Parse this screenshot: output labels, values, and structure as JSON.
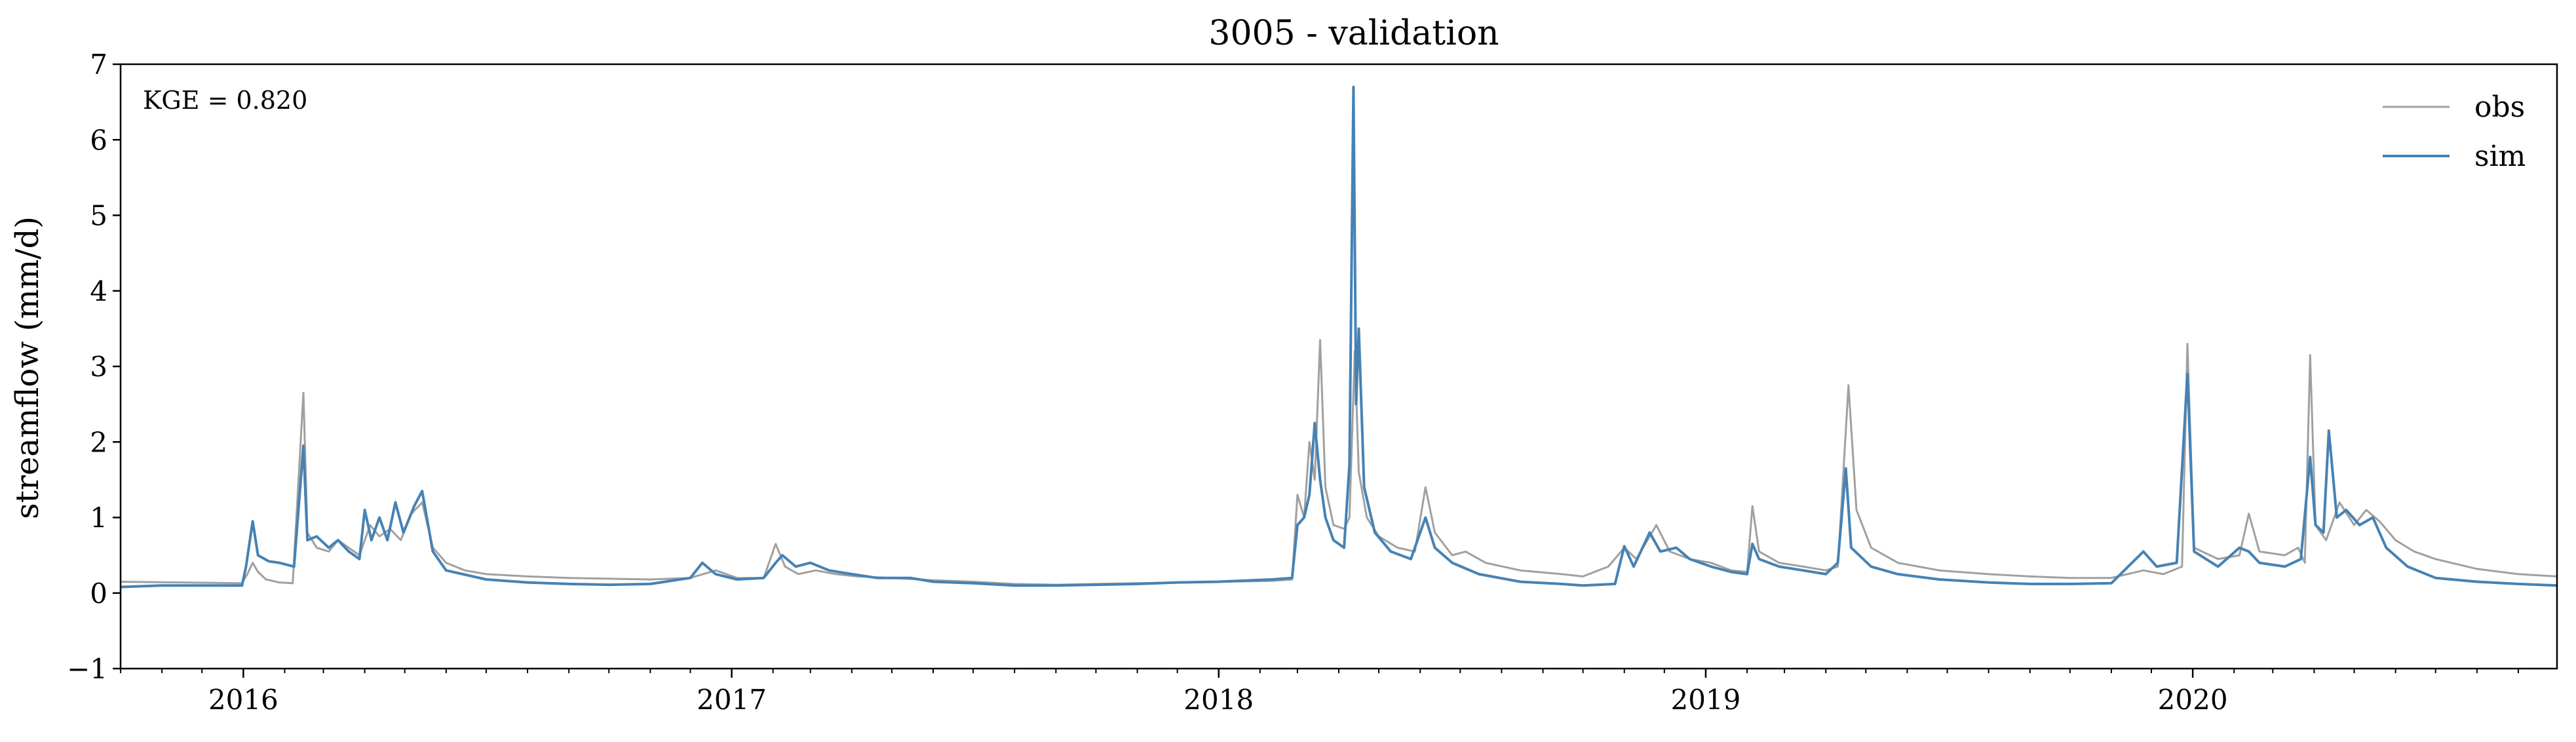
{
  "chart_data": {
    "type": "line",
    "title": "3005 - validation",
    "xlabel": "",
    "ylabel": "streamflow (mm/d)",
    "ylim": [
      -1,
      7
    ],
    "yticks": [
      -1,
      0,
      1,
      2,
      3,
      4,
      5,
      6,
      7
    ],
    "xlim": [
      "2015-10-01",
      "2020-09-30"
    ],
    "xticks": [
      "2016-01-01",
      "2017-01-01",
      "2018-01-01",
      "2019-01-01",
      "2020-01-01"
    ],
    "xtick_labels": [
      "2016",
      "2017",
      "2018",
      "2019",
      "2020"
    ],
    "grid": false,
    "legend_position": "top-right",
    "annotation": "KGE = 0.820",
    "colors": {
      "obs": "#a0a0a0",
      "sim": "#4682b4"
    },
    "series": [
      {
        "name": "obs",
        "points": [
          [
            "2015-10-01",
            0.15
          ],
          [
            "2015-11-15",
            0.14
          ],
          [
            "2015-12-31",
            0.13
          ],
          [
            "2016-01-04",
            0.25
          ],
          [
            "2016-01-08",
            0.4
          ],
          [
            "2016-01-12",
            0.28
          ],
          [
            "2016-01-18",
            0.18
          ],
          [
            "2016-01-28",
            0.14
          ],
          [
            "2016-02-07",
            0.13
          ],
          [
            "2016-02-15",
            2.65
          ],
          [
            "2016-02-18",
            0.8
          ],
          [
            "2016-02-25",
            0.6
          ],
          [
            "2016-03-05",
            0.55
          ],
          [
            "2016-03-12",
            0.7
          ],
          [
            "2016-03-20",
            0.6
          ],
          [
            "2016-03-28",
            0.5
          ],
          [
            "2016-04-05",
            0.9
          ],
          [
            "2016-04-12",
            0.75
          ],
          [
            "2016-04-20",
            0.85
          ],
          [
            "2016-04-28",
            0.7
          ],
          [
            "2016-05-06",
            1.05
          ],
          [
            "2016-05-14",
            1.2
          ],
          [
            "2016-05-22",
            0.6
          ],
          [
            "2016-06-01",
            0.4
          ],
          [
            "2016-06-15",
            0.3
          ],
          [
            "2016-07-01",
            0.25
          ],
          [
            "2016-08-01",
            0.22
          ],
          [
            "2016-09-01",
            0.2
          ],
          [
            "2016-10-01",
            0.19
          ],
          [
            "2016-11-01",
            0.18
          ],
          [
            "2016-12-01",
            0.2
          ],
          [
            "2016-12-20",
            0.3
          ],
          [
            "2017-01-05",
            0.2
          ],
          [
            "2017-01-25",
            0.2
          ],
          [
            "2017-02-03",
            0.65
          ],
          [
            "2017-02-10",
            0.35
          ],
          [
            "2017-02-20",
            0.25
          ],
          [
            "2017-03-05",
            0.3
          ],
          [
            "2017-03-20",
            0.25
          ],
          [
            "2017-04-05",
            0.22
          ],
          [
            "2017-05-01",
            0.2
          ],
          [
            "2017-06-01",
            0.17
          ],
          [
            "2017-07-01",
            0.15
          ],
          [
            "2017-08-01",
            0.12
          ],
          [
            "2017-09-01",
            0.11
          ],
          [
            "2017-10-01",
            0.12
          ],
          [
            "2017-11-01",
            0.13
          ],
          [
            "2017-12-01",
            0.14
          ],
          [
            "2018-01-01",
            0.15
          ],
          [
            "2018-02-10",
            0.16
          ],
          [
            "2018-02-25",
            0.18
          ],
          [
            "2018-03-01",
            1.3
          ],
          [
            "2018-03-06",
            1.0
          ],
          [
            "2018-03-10",
            2.0
          ],
          [
            "2018-03-14",
            1.5
          ],
          [
            "2018-03-18",
            3.35
          ],
          [
            "2018-03-22",
            1.4
          ],
          [
            "2018-03-28",
            0.9
          ],
          [
            "2018-04-05",
            0.85
          ],
          [
            "2018-04-09",
            1.0
          ],
          [
            "2018-04-13",
            3.2
          ],
          [
            "2018-04-16",
            1.6
          ],
          [
            "2018-04-22",
            1.0
          ],
          [
            "2018-05-01",
            0.75
          ],
          [
            "2018-05-15",
            0.6
          ],
          [
            "2018-05-28",
            0.55
          ],
          [
            "2018-06-05",
            1.4
          ],
          [
            "2018-06-12",
            0.8
          ],
          [
            "2018-06-25",
            0.5
          ],
          [
            "2018-07-05",
            0.55
          ],
          [
            "2018-07-20",
            0.4
          ],
          [
            "2018-08-15",
            0.3
          ],
          [
            "2018-09-15",
            0.25
          ],
          [
            "2018-10-01",
            0.22
          ],
          [
            "2018-10-20",
            0.35
          ],
          [
            "2018-11-01",
            0.6
          ],
          [
            "2018-11-10",
            0.45
          ],
          [
            "2018-11-25",
            0.9
          ],
          [
            "2018-12-05",
            0.55
          ],
          [
            "2018-12-20",
            0.45
          ],
          [
            "2019-01-05",
            0.4
          ],
          [
            "2019-01-20",
            0.3
          ],
          [
            "2019-02-01",
            0.28
          ],
          [
            "2019-02-05",
            1.15
          ],
          [
            "2019-02-10",
            0.55
          ],
          [
            "2019-02-25",
            0.4
          ],
          [
            "2019-03-15",
            0.35
          ],
          [
            "2019-04-01",
            0.3
          ],
          [
            "2019-04-10",
            0.35
          ],
          [
            "2019-04-18",
            2.75
          ],
          [
            "2019-04-24",
            1.1
          ],
          [
            "2019-05-05",
            0.6
          ],
          [
            "2019-05-25",
            0.4
          ],
          [
            "2019-06-25",
            0.3
          ],
          [
            "2019-08-01",
            0.25
          ],
          [
            "2019-09-01",
            0.22
          ],
          [
            "2019-10-01",
            0.2
          ],
          [
            "2019-11-01",
            0.2
          ],
          [
            "2019-11-25",
            0.3
          ],
          [
            "2019-12-10",
            0.25
          ],
          [
            "2019-12-24",
            0.35
          ],
          [
            "2019-12-28",
            3.3
          ],
          [
            "2020-01-02",
            0.6
          ],
          [
            "2020-01-20",
            0.45
          ],
          [
            "2020-02-05",
            0.5
          ],
          [
            "2020-02-12",
            1.05
          ],
          [
            "2020-02-20",
            0.55
          ],
          [
            "2020-03-10",
            0.5
          ],
          [
            "2020-03-20",
            0.6
          ],
          [
            "2020-03-25",
            0.4
          ],
          [
            "2020-03-29",
            3.15
          ],
          [
            "2020-04-02",
            0.9
          ],
          [
            "2020-04-10",
            0.7
          ],
          [
            "2020-04-20",
            1.2
          ],
          [
            "2020-05-01",
            0.9
          ],
          [
            "2020-05-10",
            1.1
          ],
          [
            "2020-05-20",
            0.95
          ],
          [
            "2020-06-01",
            0.7
          ],
          [
            "2020-06-15",
            0.55
          ],
          [
            "2020-07-01",
            0.45
          ],
          [
            "2020-08-01",
            0.32
          ],
          [
            "2020-09-01",
            0.25
          ],
          [
            "2020-09-30",
            0.22
          ]
        ]
      },
      {
        "name": "sim",
        "points": [
          [
            "2015-10-01",
            0.08
          ],
          [
            "2015-11-01",
            0.1
          ],
          [
            "2015-12-31",
            0.1
          ],
          [
            "2016-01-03",
            0.35
          ],
          [
            "2016-01-08",
            0.95
          ],
          [
            "2016-01-12",
            0.5
          ],
          [
            "2016-01-20",
            0.42
          ],
          [
            "2016-01-28",
            0.4
          ],
          [
            "2016-02-08",
            0.35
          ],
          [
            "2016-02-15",
            1.95
          ],
          [
            "2016-02-18",
            0.7
          ],
          [
            "2016-02-25",
            0.75
          ],
          [
            "2016-03-05",
            0.6
          ],
          [
            "2016-03-12",
            0.7
          ],
          [
            "2016-03-20",
            0.55
          ],
          [
            "2016-03-28",
            0.45
          ],
          [
            "2016-04-01",
            1.1
          ],
          [
            "2016-04-06",
            0.7
          ],
          [
            "2016-04-12",
            1.0
          ],
          [
            "2016-04-18",
            0.7
          ],
          [
            "2016-04-24",
            1.2
          ],
          [
            "2016-04-30",
            0.8
          ],
          [
            "2016-05-08",
            1.15
          ],
          [
            "2016-05-14",
            1.35
          ],
          [
            "2016-05-22",
            0.55
          ],
          [
            "2016-06-01",
            0.3
          ],
          [
            "2016-07-01",
            0.18
          ],
          [
            "2016-08-01",
            0.14
          ],
          [
            "2016-09-01",
            0.12
          ],
          [
            "2016-10-01",
            0.11
          ],
          [
            "2016-11-01",
            0.12
          ],
          [
            "2016-12-01",
            0.2
          ],
          [
            "2016-12-10",
            0.4
          ],
          [
            "2016-12-20",
            0.25
          ],
          [
            "2017-01-05",
            0.18
          ],
          [
            "2017-01-25",
            0.2
          ],
          [
            "2017-02-03",
            0.4
          ],
          [
            "2017-02-08",
            0.5
          ],
          [
            "2017-02-18",
            0.35
          ],
          [
            "2017-03-01",
            0.4
          ],
          [
            "2017-03-15",
            0.3
          ],
          [
            "2017-04-01",
            0.25
          ],
          [
            "2017-04-20",
            0.2
          ],
          [
            "2017-05-15",
            0.2
          ],
          [
            "2017-06-01",
            0.15
          ],
          [
            "2017-07-01",
            0.13
          ],
          [
            "2017-08-01",
            0.1
          ],
          [
            "2017-09-01",
            0.1
          ],
          [
            "2017-10-01",
            0.11
          ],
          [
            "2017-11-01",
            0.12
          ],
          [
            "2017-12-01",
            0.14
          ],
          [
            "2018-01-01",
            0.15
          ],
          [
            "2018-02-10",
            0.18
          ],
          [
            "2018-02-25",
            0.2
          ],
          [
            "2018-03-01",
            0.9
          ],
          [
            "2018-03-06",
            1.0
          ],
          [
            "2018-03-10",
            1.3
          ],
          [
            "2018-03-14",
            2.25
          ],
          [
            "2018-03-18",
            1.5
          ],
          [
            "2018-03-22",
            1.0
          ],
          [
            "2018-03-28",
            0.7
          ],
          [
            "2018-04-05",
            0.6
          ],
          [
            "2018-04-09",
            1.7
          ],
          [
            "2018-04-12",
            6.7
          ],
          [
            "2018-04-14",
            2.5
          ],
          [
            "2018-04-16",
            3.5
          ],
          [
            "2018-04-20",
            1.4
          ],
          [
            "2018-04-28",
            0.8
          ],
          [
            "2018-05-10",
            0.55
          ],
          [
            "2018-05-25",
            0.45
          ],
          [
            "2018-06-05",
            1.0
          ],
          [
            "2018-06-12",
            0.6
          ],
          [
            "2018-06-25",
            0.4
          ],
          [
            "2018-07-15",
            0.25
          ],
          [
            "2018-08-15",
            0.15
          ],
          [
            "2018-09-15",
            0.12
          ],
          [
            "2018-10-01",
            0.1
          ],
          [
            "2018-10-25",
            0.12
          ],
          [
            "2018-11-01",
            0.62
          ],
          [
            "2018-11-08",
            0.35
          ],
          [
            "2018-11-20",
            0.8
          ],
          [
            "2018-11-28",
            0.55
          ],
          [
            "2018-12-10",
            0.6
          ],
          [
            "2018-12-20",
            0.45
          ],
          [
            "2019-01-05",
            0.35
          ],
          [
            "2019-01-20",
            0.28
          ],
          [
            "2019-02-01",
            0.25
          ],
          [
            "2019-02-05",
            0.65
          ],
          [
            "2019-02-10",
            0.45
          ],
          [
            "2019-02-25",
            0.35
          ],
          [
            "2019-03-15",
            0.3
          ],
          [
            "2019-04-01",
            0.25
          ],
          [
            "2019-04-10",
            0.4
          ],
          [
            "2019-04-16",
            1.65
          ],
          [
            "2019-04-20",
            0.6
          ],
          [
            "2019-05-05",
            0.35
          ],
          [
            "2019-05-25",
            0.25
          ],
          [
            "2019-06-25",
            0.18
          ],
          [
            "2019-08-01",
            0.14
          ],
          [
            "2019-09-01",
            0.12
          ],
          [
            "2019-10-01",
            0.12
          ],
          [
            "2019-11-01",
            0.13
          ],
          [
            "2019-11-25",
            0.55
          ],
          [
            "2019-12-05",
            0.35
          ],
          [
            "2019-12-20",
            0.4
          ],
          [
            "2019-12-28",
            2.9
          ],
          [
            "2020-01-02",
            0.55
          ],
          [
            "2020-01-20",
            0.35
          ],
          [
            "2020-02-05",
            0.6
          ],
          [
            "2020-02-12",
            0.55
          ],
          [
            "2020-02-20",
            0.4
          ],
          [
            "2020-03-10",
            0.35
          ],
          [
            "2020-03-22",
            0.45
          ],
          [
            "2020-03-29",
            1.8
          ],
          [
            "2020-04-02",
            0.9
          ],
          [
            "2020-04-08",
            0.8
          ],
          [
            "2020-04-12",
            2.15
          ],
          [
            "2020-04-18",
            1.0
          ],
          [
            "2020-04-25",
            1.1
          ],
          [
            "2020-05-05",
            0.9
          ],
          [
            "2020-05-15",
            1.0
          ],
          [
            "2020-05-25",
            0.6
          ],
          [
            "2020-06-10",
            0.35
          ],
          [
            "2020-07-01",
            0.2
          ],
          [
            "2020-08-01",
            0.15
          ],
          [
            "2020-09-01",
            0.12
          ],
          [
            "2020-09-30",
            0.1
          ]
        ]
      }
    ]
  }
}
